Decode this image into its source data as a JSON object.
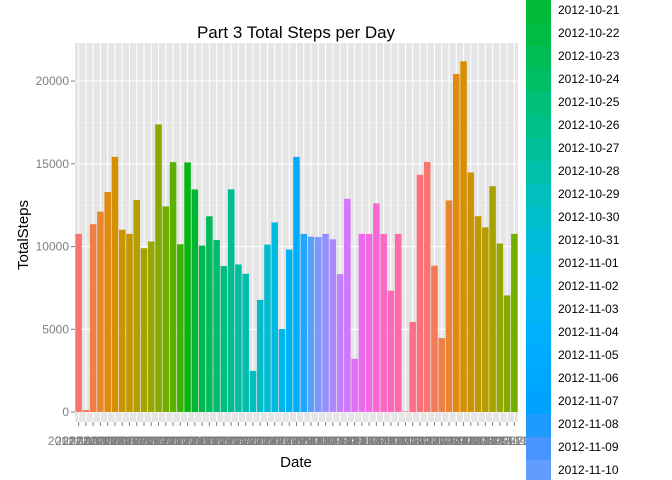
{
  "chart_data": {
    "type": "bar",
    "title": "Part 3 Total Steps per Day",
    "xlabel": "Date",
    "ylabel": "TotalSteps",
    "ylim": [
      -600,
      22300
    ],
    "yticks": [
      0,
      5000,
      10000,
      15000,
      20000
    ],
    "grid": true,
    "legend_position": "right",
    "categories": [
      "2012-10-01",
      "2012-10-02",
      "2012-10-03",
      "2012-10-04",
      "2012-10-05",
      "2012-10-06",
      "2012-10-07",
      "2012-10-08",
      "2012-10-09",
      "2012-10-10",
      "2012-10-11",
      "2012-10-12",
      "2012-10-13",
      "2012-10-14",
      "2012-10-15",
      "2012-10-16",
      "2012-10-17",
      "2012-10-18",
      "2012-10-19",
      "2012-10-20",
      "2012-10-21",
      "2012-10-22",
      "2012-10-23",
      "2012-10-24",
      "2012-10-25",
      "2012-10-26",
      "2012-10-27",
      "2012-10-28",
      "2012-10-29",
      "2012-10-30",
      "2012-10-31",
      "2012-11-01",
      "2012-11-02",
      "2012-11-03",
      "2012-11-04",
      "2012-11-05",
      "2012-11-06",
      "2012-11-07",
      "2012-11-08",
      "2012-11-09",
      "2012-11-10",
      "2012-11-11",
      "2012-11-12",
      "2012-11-13",
      "2012-11-14",
      "2012-11-15",
      "2012-11-16",
      "2012-11-17",
      "2012-11-18",
      "2012-11-19",
      "2012-11-20",
      "2012-11-21",
      "2012-11-22",
      "2012-11-23",
      "2012-11-24",
      "2012-11-25",
      "2012-11-26",
      "2012-11-27",
      "2012-11-28",
      "2012-11-29",
      "2012-11-30"
    ],
    "values": [
      10766,
      126,
      11352,
      12116,
      13294,
      15420,
      11015,
      10766,
      12811,
      9900,
      10304,
      17382,
      12426,
      15098,
      10139,
      15084,
      13452,
      10056,
      11829,
      10395,
      8821,
      13460,
      8918,
      8355,
      2492,
      6778,
      10119,
      11458,
      5018,
      9819,
      15414,
      10766,
      10600,
      10571,
      10766,
      10439,
      8334,
      12883,
      3219,
      10766,
      10766,
      12608,
      10765,
      7336,
      10766,
      41,
      5441,
      14339,
      15110,
      8841,
      4472,
      12787,
      20427,
      21194,
      14478,
      11834,
      11162,
      13646,
      10183,
      7047,
      10766
    ],
    "colors": [
      "#F8766D",
      "#F47A58",
      "#EF7F45",
      "#E8852D",
      "#E08A0F",
      "#D58F00",
      "#CC9400",
      "#C09900",
      "#B49E00",
      "#A6A200",
      "#97A600",
      "#86AA00",
      "#72AD00",
      "#5CB000",
      "#3CB300",
      "#05B511",
      "#00B734",
      "#00B94B",
      "#00BB5F",
      "#00BC70",
      "#00BD81",
      "#00BE91",
      "#00BFA0",
      "#00BFAE",
      "#00BFBC",
      "#00BEC9",
      "#00BCD5",
      "#00BAE0",
      "#00B6EA",
      "#00B2F3",
      "#00ADFA",
      "#1FA7FF",
      "#58A0FF",
      "#7B98FF",
      "#978FFF",
      "#AE87FF",
      "#C17FFF",
      "#D277FF",
      "#E070F6",
      "#EA6CEC",
      "#F269E1",
      "#F868D4",
      "#FC67C7",
      "#FF68B8",
      "#FF69AA",
      "#FF6B9B",
      "#FD6E8B",
      "#FA717B",
      "#F8766D",
      "#F47A58",
      "#EF7F45",
      "#E8852D",
      "#E08A0F",
      "#D58F00",
      "#CC9400",
      "#C09900",
      "#B49E00",
      "#A6A200",
      "#97A600",
      "#86AA00",
      "#72AD00"
    ]
  },
  "legend": {
    "items": [
      {
        "label": "2012-10-21",
        "color": "#00BA38"
      },
      {
        "label": "2012-10-22",
        "color": "#00BC45"
      },
      {
        "label": "2012-10-23",
        "color": "#00BD55"
      },
      {
        "label": "2012-10-24",
        "color": "#00BE66"
      },
      {
        "label": "2012-10-25",
        "color": "#00BF78"
      },
      {
        "label": "2012-10-26",
        "color": "#00C08A"
      },
      {
        "label": "2012-10-27",
        "color": "#00C09B"
      },
      {
        "label": "2012-10-28",
        "color": "#00C0AC"
      },
      {
        "label": "2012-10-29",
        "color": "#00BFBC"
      },
      {
        "label": "2012-10-30",
        "color": "#00BECB"
      },
      {
        "label": "2012-10-31",
        "color": "#00BCD8"
      },
      {
        "label": "2012-11-01",
        "color": "#00BAE4"
      },
      {
        "label": "2012-11-02",
        "color": "#00B7EE"
      },
      {
        "label": "2012-11-03",
        "color": "#00B4F6"
      },
      {
        "label": "2012-11-04",
        "color": "#00B0FC"
      },
      {
        "label": "2012-11-05",
        "color": "#00ACFF"
      },
      {
        "label": "2012-11-06",
        "color": "#00A7FF"
      },
      {
        "label": "2012-11-07",
        "color": "#00A2FF"
      },
      {
        "label": "2012-11-08",
        "color": "#1F9BFF"
      },
      {
        "label": "2012-11-09",
        "color": "#4A94FF"
      },
      {
        "label": "2012-11-10",
        "color": "#619CFF"
      }
    ]
  }
}
